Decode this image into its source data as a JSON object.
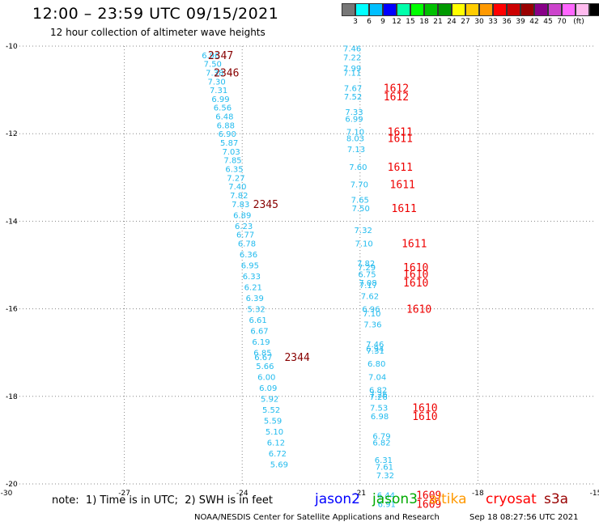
{
  "header": {
    "title": "12:00 – 23:59 UTC 09/15/2021",
    "subtitle": "12 hour collection of altimeter wave heights"
  },
  "colorbar": {
    "colors": [
      "#777777",
      "#00ffff",
      "#00bfff",
      "#0000ff",
      "#00ffaa",
      "#00ff00",
      "#00c000",
      "#009900",
      "#ffff00",
      "#ffcc00",
      "#ff9900",
      "#ff0000",
      "#cc0000",
      "#990000",
      "#880088",
      "#cc44cc",
      "#ff66ff",
      "#ffbbee",
      "#000000"
    ],
    "ticks": [
      "3",
      "6",
      "9",
      "12",
      "15",
      "18",
      "21",
      "24",
      "27",
      "30",
      "33",
      "36",
      "39",
      "42",
      "45",
      "70",
      "(ft)"
    ]
  },
  "chart_data": {
    "type": "scatter",
    "xlim": [
      -30,
      -15
    ],
    "ylim": [
      -20,
      -10
    ],
    "x_ticks": [
      -30,
      -27,
      -24,
      -21,
      -18,
      -15
    ],
    "y_ticks": [
      -10,
      -12,
      -14,
      -16,
      -18,
      -20
    ],
    "grid": true,
    "track1": {
      "color": "#22bbee",
      "points": [
        {
          "x": -24.8,
          "y": -10.2,
          "label": "6.96"
        },
        {
          "x": -24.75,
          "y": -10.4,
          "label": "7.50"
        },
        {
          "x": -24.7,
          "y": -10.6,
          "label": "7.38"
        },
        {
          "x": -24.65,
          "y": -10.8,
          "label": "7.30"
        },
        {
          "x": -24.6,
          "y": -11.0,
          "label": "7.31"
        },
        {
          "x": -24.55,
          "y": -11.2,
          "label": "6.99"
        },
        {
          "x": -24.5,
          "y": -11.4,
          "label": "6.56"
        },
        {
          "x": -24.45,
          "y": -11.6,
          "label": "6.48"
        },
        {
          "x": -24.42,
          "y": -11.8,
          "label": "6.88"
        },
        {
          "x": -24.38,
          "y": -12.0,
          "label": "6.90"
        },
        {
          "x": -24.33,
          "y": -12.2,
          "label": "5.87"
        },
        {
          "x": -24.28,
          "y": -12.4,
          "label": "7.03"
        },
        {
          "x": -24.24,
          "y": -12.6,
          "label": "7.85"
        },
        {
          "x": -24.2,
          "y": -12.8,
          "label": "6.35"
        },
        {
          "x": -24.16,
          "y": -13.0,
          "label": "7.27"
        },
        {
          "x": -24.12,
          "y": -13.2,
          "label": "7.40"
        },
        {
          "x": -24.08,
          "y": -13.4,
          "label": "7.82"
        },
        {
          "x": -24.04,
          "y": -13.6,
          "label": "7.83"
        },
        {
          "x": -24.0,
          "y": -13.85,
          "label": "6.89"
        },
        {
          "x": -23.96,
          "y": -14.1,
          "label": "6.23"
        },
        {
          "x": -23.92,
          "y": -14.3,
          "label": "6.77"
        },
        {
          "x": -23.88,
          "y": -14.5,
          "label": "6.78"
        },
        {
          "x": -23.84,
          "y": -14.75,
          "label": "6.36"
        },
        {
          "x": -23.8,
          "y": -15.0,
          "label": "6.95"
        },
        {
          "x": -23.76,
          "y": -15.25,
          "label": "6.33"
        },
        {
          "x": -23.72,
          "y": -15.5,
          "label": "6.21"
        },
        {
          "x": -23.68,
          "y": -15.75,
          "label": "6.39"
        },
        {
          "x": -23.64,
          "y": -16.0,
          "label": "5.32"
        },
        {
          "x": -23.6,
          "y": -16.25,
          "label": "6.61"
        },
        {
          "x": -23.56,
          "y": -16.5,
          "label": "6.67"
        },
        {
          "x": -23.52,
          "y": -16.75,
          "label": "6.19"
        },
        {
          "x": -23.48,
          "y": -17.0,
          "label": "6.85"
        },
        {
          "x": -23.46,
          "y": -17.1,
          "label": "6.67"
        },
        {
          "x": -23.42,
          "y": -17.3,
          "label": "5.66"
        },
        {
          "x": -23.38,
          "y": -17.55,
          "label": "6.00"
        },
        {
          "x": -23.34,
          "y": -17.8,
          "label": "6.09"
        },
        {
          "x": -23.3,
          "y": -18.05,
          "label": "5.92"
        },
        {
          "x": -23.26,
          "y": -18.3,
          "label": "5.52"
        },
        {
          "x": -23.22,
          "y": -18.55,
          "label": "5.59"
        },
        {
          "x": -23.18,
          "y": -18.8,
          "label": "5.10"
        },
        {
          "x": -23.14,
          "y": -19.05,
          "label": "6.12"
        },
        {
          "x": -23.1,
          "y": -19.3,
          "label": "6.72"
        },
        {
          "x": -23.06,
          "y": -19.55,
          "label": "5.69"
        }
      ],
      "time_labels": [
        {
          "x": -24.55,
          "y": -10.2,
          "label": "2347"
        },
        {
          "x": -24.4,
          "y": -10.6,
          "label": "2346"
        },
        {
          "x": -23.4,
          "y": -13.6,
          "label": "2345"
        },
        {
          "x": -22.6,
          "y": -17.1,
          "label": "2344"
        }
      ]
    },
    "track2": {
      "color": "#22bbee",
      "points": [
        {
          "x": -21.2,
          "y": -10.05,
          "label": "7.46"
        },
        {
          "x": -21.2,
          "y": -10.25,
          "label": "7.22"
        },
        {
          "x": -21.2,
          "y": -10.5,
          "label": "7.99"
        },
        {
          "x": -21.2,
          "y": -10.6,
          "label": "7.11"
        },
        {
          "x": -21.18,
          "y": -10.95,
          "label": "7.67"
        },
        {
          "x": -21.18,
          "y": -11.15,
          "label": "7.52"
        },
        {
          "x": -21.15,
          "y": -11.5,
          "label": "7.33"
        },
        {
          "x": -21.15,
          "y": -11.65,
          "label": "6.99"
        },
        {
          "x": -21.12,
          "y": -11.95,
          "label": "7.10"
        },
        {
          "x": -21.12,
          "y": -12.1,
          "label": "8.03"
        },
        {
          "x": -21.1,
          "y": -12.35,
          "label": "7.13"
        },
        {
          "x": -21.05,
          "y": -12.75,
          "label": "7.60"
        },
        {
          "x": -21.02,
          "y": -13.15,
          "label": "7.70"
        },
        {
          "x": -21.0,
          "y": -13.5,
          "label": "7.65"
        },
        {
          "x": -20.98,
          "y": -13.7,
          "label": "7.50"
        },
        {
          "x": -20.92,
          "y": -14.2,
          "label": "7.32"
        },
        {
          "x": -20.9,
          "y": -14.5,
          "label": "7.10"
        },
        {
          "x": -20.85,
          "y": -14.95,
          "label": "7.82"
        },
        {
          "x": -20.83,
          "y": -15.05,
          "label": "7.29"
        },
        {
          "x": -20.82,
          "y": -15.2,
          "label": "6.75"
        },
        {
          "x": -20.8,
          "y": -15.4,
          "label": "7.08"
        },
        {
          "x": -20.79,
          "y": -15.45,
          "label": "7.17"
        },
        {
          "x": -20.75,
          "y": -15.7,
          "label": "7.62"
        },
        {
          "x": -20.72,
          "y": -16.0,
          "label": "6.96"
        },
        {
          "x": -20.7,
          "y": -16.1,
          "label": "7.10"
        },
        {
          "x": -20.68,
          "y": -16.35,
          "label": "7.36"
        },
        {
          "x": -20.62,
          "y": -16.8,
          "label": "7.46"
        },
        {
          "x": -20.62,
          "y": -16.9,
          "label": "6.94"
        },
        {
          "x": -20.61,
          "y": -16.95,
          "label": "7.31"
        },
        {
          "x": -20.58,
          "y": -17.25,
          "label": "6.80"
        },
        {
          "x": -20.56,
          "y": -17.55,
          "label": "7.04"
        },
        {
          "x": -20.54,
          "y": -17.85,
          "label": "6.82"
        },
        {
          "x": -20.53,
          "y": -17.95,
          "label": "7.26"
        },
        {
          "x": -20.53,
          "y": -18.0,
          "label": "7.26"
        },
        {
          "x": -20.52,
          "y": -18.25,
          "label": "7.53"
        },
        {
          "x": -20.5,
          "y": -18.45,
          "label": "6.98"
        },
        {
          "x": -20.45,
          "y": -18.9,
          "label": "6.79"
        },
        {
          "x": -20.45,
          "y": -19.05,
          "label": "6.82"
        },
        {
          "x": -20.4,
          "y": -19.45,
          "label": "6.31"
        },
        {
          "x": -20.38,
          "y": -19.6,
          "label": "7.61"
        },
        {
          "x": -20.36,
          "y": -19.8,
          "label": "7.32"
        },
        {
          "x": -20.34,
          "y": -20.25,
          "label": "6.44"
        },
        {
          "x": -20.32,
          "y": -20.45,
          "label": "6.91"
        }
      ],
      "time_labels": [
        {
          "x": -20.08,
          "y": -10.95,
          "label": "1612"
        },
        {
          "x": -20.08,
          "y": -11.15,
          "label": "1612"
        },
        {
          "x": -19.98,
          "y": -11.95,
          "label": "1611"
        },
        {
          "x": -19.98,
          "y": -12.1,
          "label": "1611"
        },
        {
          "x": -19.98,
          "y": -12.75,
          "label": "1611"
        },
        {
          "x": -19.92,
          "y": -13.15,
          "label": "1611"
        },
        {
          "x": -19.88,
          "y": -13.7,
          "label": "1611"
        },
        {
          "x": -19.62,
          "y": -14.5,
          "label": "1611"
        },
        {
          "x": -19.58,
          "y": -15.05,
          "label": "1610"
        },
        {
          "x": -19.58,
          "y": -15.2,
          "label": "1610"
        },
        {
          "x": -19.58,
          "y": -15.4,
          "label": "1610"
        },
        {
          "x": -19.5,
          "y": -16.0,
          "label": "1610"
        },
        {
          "x": -19.35,
          "y": -18.25,
          "label": "1610"
        },
        {
          "x": -19.35,
          "y": -18.45,
          "label": "1610"
        },
        {
          "x": -19.25,
          "y": -20.25,
          "label": "1609"
        },
        {
          "x": -19.25,
          "y": -20.45,
          "label": "1609"
        }
      ]
    }
  },
  "legend": {
    "note": "note:  1) Time is in UTC;  2) SWH is in feet",
    "satellites": [
      {
        "name": "jason2",
        "color": "#0000ff"
      },
      {
        "name": "jason3",
        "color": "#00aa00"
      },
      {
        "name": "altika",
        "color": "#ff9900"
      },
      {
        "name": "cryosat",
        "color": "#ff0000"
      },
      {
        "name": "s3a",
        "color": "#990000"
      }
    ]
  },
  "footer": {
    "credit": "NOAA/NESDIS Center for Satellite Applications and Research",
    "timestamp": "Sep 18 08:27:56 UTC 2021"
  }
}
